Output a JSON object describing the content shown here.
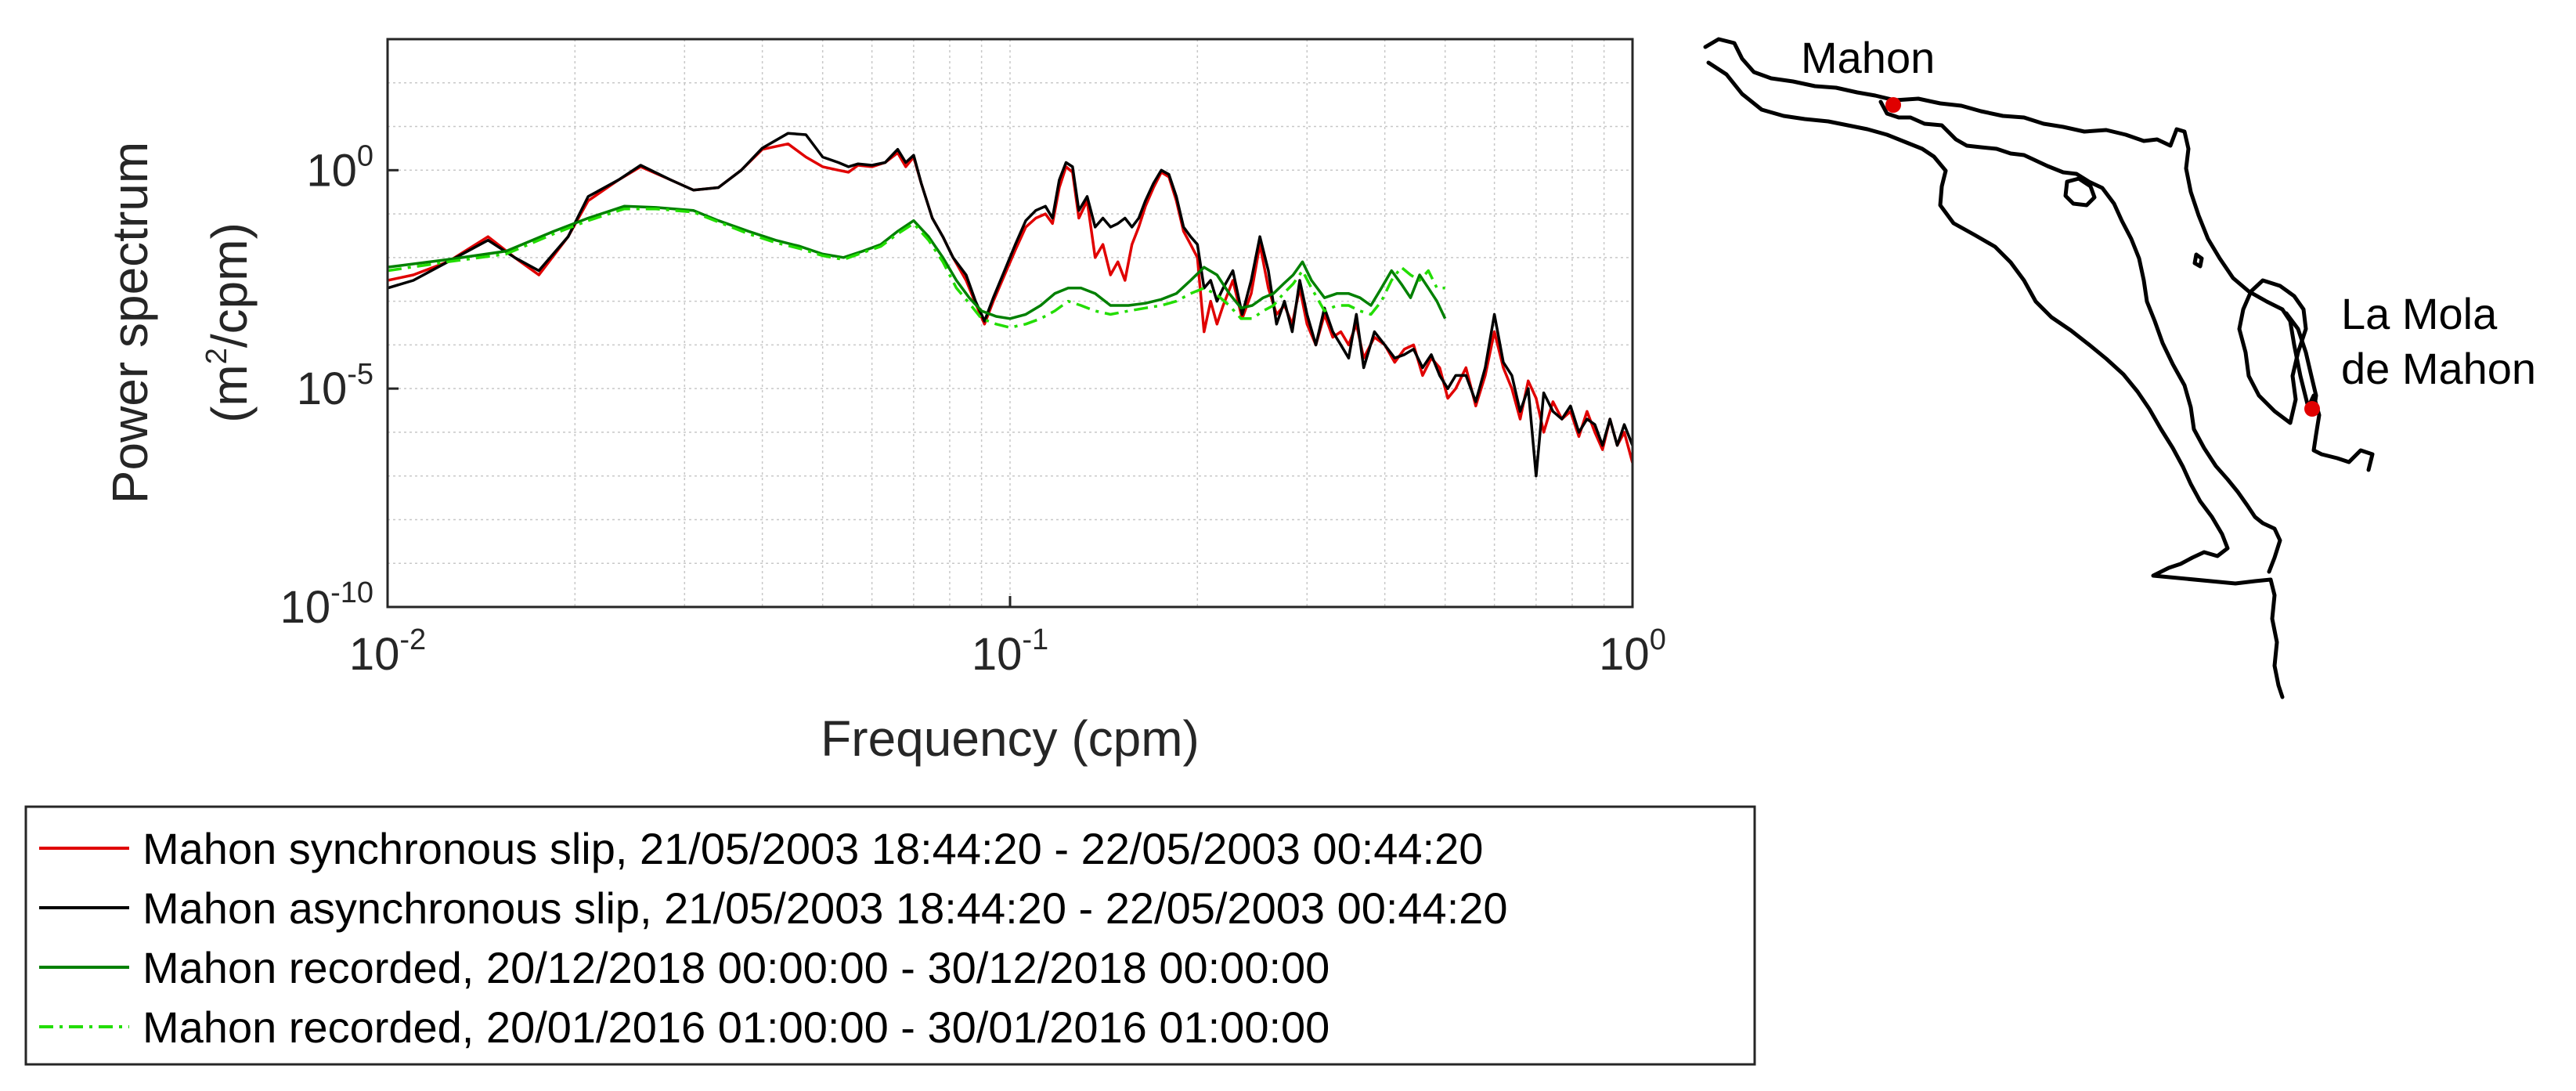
{
  "chart_data": [
    {
      "type": "line",
      "xscale": "log",
      "yscale": "log",
      "xlim": [
        0.01,
        1
      ],
      "ylim": [
        1e-10,
        1000
      ],
      "grid": true,
      "xlabel": "Frequency (cpm)",
      "ylabel_line1": "Power spectrum",
      "ylabel_line2_pre": "(m",
      "ylabel_line2_sup": "2",
      "ylabel_line2_post": "/cpm)",
      "xticks": [
        {
          "value": 0.01,
          "base": "10",
          "exp": "-2"
        },
        {
          "value": 0.1,
          "base": "10",
          "exp": "-1"
        },
        {
          "value": 1,
          "base": "10",
          "exp": "0"
        }
      ],
      "yticks": [
        {
          "value": 1,
          "base": "10",
          "exp": "0"
        },
        {
          "value": 1e-05,
          "base": "10",
          "exp": "-5"
        },
        {
          "value": 1e-10,
          "base": "10",
          "exp": "-10"
        }
      ],
      "legend_position": "below-left",
      "series": [
        {
          "name": "Mahon synchronous slip, 21/05/2003 18:44:20 - 22/05/2003 00:44:20",
          "color": "#e00000",
          "style": "solid",
          "x": [
            0.01,
            0.011,
            0.0125,
            0.0145,
            0.016,
            0.0175,
            0.0195,
            0.021,
            0.0235,
            0.0255,
            0.0285,
            0.031,
            0.034,
            0.037,
            0.04,
            0.044,
            0.047,
            0.05,
            0.053,
            0.055,
            0.057,
            0.06,
            0.063,
            0.066,
            0.068,
            0.07,
            0.072,
            0.075,
            0.078,
            0.081,
            0.085,
            0.088,
            0.091,
            0.094,
            0.098,
            0.102,
            0.106,
            0.11,
            0.114,
            0.117,
            0.12,
            0.123,
            0.126,
            0.129,
            0.133,
            0.137,
            0.141,
            0.145,
            0.149,
            0.153,
            0.157,
            0.161,
            0.165,
            0.17,
            0.175,
            0.18,
            0.185,
            0.19,
            0.195,
            0.2,
            0.205,
            0.21,
            0.215,
            0.22,
            0.228,
            0.236,
            0.244,
            0.252,
            0.26,
            0.268,
            0.276,
            0.284,
            0.292,
            0.3,
            0.31,
            0.32,
            0.33,
            0.34,
            0.35,
            0.36,
            0.37,
            0.385,
            0.4,
            0.415,
            0.43,
            0.445,
            0.46,
            0.475,
            0.49,
            0.505,
            0.52,
            0.54,
            0.56,
            0.58,
            0.6,
            0.62,
            0.64,
            0.66,
            0.68,
            0.7,
            0.72,
            0.745,
            0.77,
            0.795,
            0.82,
            0.845,
            0.87,
            0.895,
            0.92,
            0.945,
            0.97,
            1.0
          ],
          "y": [
            0.003,
            0.004,
            0.008,
            0.03,
            0.01,
            0.004,
            0.03,
            0.2,
            0.6,
            1.2,
            0.6,
            0.35,
            0.4,
            1.0,
            3.0,
            4.0,
            2.0,
            1.2,
            1.0,
            0.9,
            1.3,
            1.2,
            1.5,
            2.5,
            1.2,
            2.0,
            0.5,
            0.08,
            0.03,
            0.01,
            0.003,
            0.0009,
            0.0003,
            0.001,
            0.004,
            0.015,
            0.05,
            0.08,
            0.1,
            0.06,
            0.4,
            1.2,
            0.9,
            0.08,
            0.2,
            0.01,
            0.02,
            0.004,
            0.008,
            0.003,
            0.02,
            0.05,
            0.15,
            0.4,
            0.9,
            0.7,
            0.2,
            0.04,
            0.02,
            0.01,
            0.0002,
            0.001,
            0.0003,
            0.0008,
            0.003,
            0.0004,
            0.0015,
            0.02,
            0.002,
            0.0005,
            0.0008,
            0.0003,
            0.002,
            0.0003,
            0.0001,
            0.0005,
            0.00015,
            0.0002,
            0.0001,
            0.0003,
            5e-05,
            0.00015,
            0.0001,
            4e-05,
            8e-05,
            0.0001,
            2e-05,
            5e-05,
            3e-05,
            6e-06,
            1e-05,
            3e-05,
            4e-06,
            2e-05,
            0.0002,
            3e-05,
            1e-05,
            2e-06,
            1.5e-05,
            6e-06,
            1e-06,
            5e-06,
            2e-06,
            3e-06,
            8e-07,
            3e-06,
            1e-06,
            4e-07,
            2e-06,
            5e-07,
            1e-06,
            2e-07
          ]
        },
        {
          "name": "Mahon asynchronous slip, 21/05/2003 18:44:20 - 22/05/2003 00:44:20",
          "color": "#000000",
          "style": "solid",
          "x": [
            0.01,
            0.011,
            0.0125,
            0.0145,
            0.016,
            0.0175,
            0.0195,
            0.021,
            0.0235,
            0.0255,
            0.0285,
            0.031,
            0.034,
            0.037,
            0.04,
            0.044,
            0.047,
            0.05,
            0.053,
            0.055,
            0.057,
            0.06,
            0.063,
            0.066,
            0.068,
            0.07,
            0.072,
            0.075,
            0.078,
            0.081,
            0.085,
            0.088,
            0.091,
            0.094,
            0.098,
            0.102,
            0.106,
            0.11,
            0.114,
            0.117,
            0.12,
            0.123,
            0.126,
            0.129,
            0.133,
            0.137,
            0.141,
            0.145,
            0.149,
            0.153,
            0.157,
            0.161,
            0.165,
            0.17,
            0.175,
            0.18,
            0.185,
            0.19,
            0.195,
            0.2,
            0.205,
            0.21,
            0.215,
            0.22,
            0.228,
            0.236,
            0.244,
            0.252,
            0.26,
            0.268,
            0.276,
            0.284,
            0.292,
            0.3,
            0.31,
            0.32,
            0.33,
            0.34,
            0.35,
            0.36,
            0.37,
            0.385,
            0.4,
            0.415,
            0.43,
            0.445,
            0.46,
            0.475,
            0.49,
            0.505,
            0.52,
            0.54,
            0.56,
            0.58,
            0.6,
            0.62,
            0.64,
            0.66,
            0.68,
            0.7,
            0.72,
            0.745,
            0.77,
            0.795,
            0.82,
            0.845,
            0.87,
            0.895,
            0.92,
            0.945,
            0.97,
            1.0
          ],
          "y": [
            0.002,
            0.003,
            0.008,
            0.025,
            0.01,
            0.005,
            0.03,
            0.25,
            0.6,
            1.3,
            0.6,
            0.35,
            0.4,
            1.0,
            3.2,
            7.0,
            6.5,
            2.0,
            1.5,
            1.2,
            1.4,
            1.3,
            1.5,
            3.0,
            1.5,
            2.2,
            0.5,
            0.08,
            0.03,
            0.01,
            0.004,
            0.001,
            0.00035,
            0.0012,
            0.005,
            0.02,
            0.07,
            0.12,
            0.15,
            0.08,
            0.6,
            1.5,
            1.2,
            0.12,
            0.25,
            0.05,
            0.08,
            0.05,
            0.06,
            0.08,
            0.05,
            0.08,
            0.2,
            0.5,
            1.0,
            0.8,
            0.25,
            0.05,
            0.03,
            0.02,
            0.002,
            0.003,
            0.001,
            0.002,
            0.005,
            0.0005,
            0.003,
            0.03,
            0.005,
            0.0003,
            0.001,
            0.0002,
            0.003,
            0.0005,
            0.0001,
            0.0007,
            0.0002,
            0.0001,
            5e-05,
            0.0005,
            3e-05,
            0.0002,
            0.0001,
            5e-05,
            6e-05,
            8e-05,
            3e-05,
            6e-05,
            2e-05,
            1e-05,
            2e-05,
            2e-05,
            5e-06,
            3e-05,
            0.0005,
            4e-05,
            2e-05,
            3e-06,
            1e-05,
            1e-07,
            8e-06,
            3e-06,
            2e-06,
            4e-06,
            1e-06,
            2e-06,
            1.5e-06,
            5e-07,
            2e-06,
            5e-07,
            1.5e-06,
            5e-07
          ]
        },
        {
          "name": "Mahon recorded, 20/12/2018 00:00:00 - 30/12/2018 00:00:00",
          "color": "#008000",
          "style": "solid",
          "x": [
            0.01,
            0.0125,
            0.0155,
            0.0185,
            0.021,
            0.024,
            0.027,
            0.031,
            0.034,
            0.038,
            0.042,
            0.046,
            0.05,
            0.054,
            0.058,
            0.062,
            0.066,
            0.07,
            0.074,
            0.078,
            0.082,
            0.086,
            0.09,
            0.095,
            0.1,
            0.106,
            0.112,
            0.118,
            0.124,
            0.13,
            0.137,
            0.145,
            0.155,
            0.165,
            0.175,
            0.185,
            0.195,
            0.205,
            0.215,
            0.225,
            0.235,
            0.245,
            0.255,
            0.265,
            0.275,
            0.285,
            0.295,
            0.305,
            0.32,
            0.335,
            0.35,
            0.365,
            0.38,
            0.395,
            0.41,
            0.425,
            0.44,
            0.455,
            0.47,
            0.485,
            0.5
          ],
          "y": [
            0.006,
            0.009,
            0.014,
            0.04,
            0.08,
            0.15,
            0.14,
            0.12,
            0.07,
            0.04,
            0.025,
            0.018,
            0.012,
            0.01,
            0.014,
            0.02,
            0.04,
            0.07,
            0.03,
            0.01,
            0.003,
            0.0012,
            0.0006,
            0.00045,
            0.0004,
            0.0005,
            0.0008,
            0.0015,
            0.002,
            0.002,
            0.0015,
            0.0008,
            0.0008,
            0.0009,
            0.0011,
            0.0015,
            0.003,
            0.006,
            0.004,
            0.0015,
            0.0007,
            0.0008,
            0.0012,
            0.0015,
            0.0025,
            0.004,
            0.008,
            0.003,
            0.0012,
            0.0015,
            0.0015,
            0.0012,
            0.0008,
            0.002,
            0.005,
            0.0025,
            0.0012,
            0.004,
            0.002,
            0.001,
            0.0004
          ]
        },
        {
          "name": "Mahon recorded, 20/01/2016 01:00:00 - 30/01/2016 01:00:00",
          "color": "#22dd00",
          "style": "dashdot",
          "x": [
            0.01,
            0.0125,
            0.0155,
            0.0185,
            0.021,
            0.024,
            0.027,
            0.031,
            0.034,
            0.038,
            0.042,
            0.046,
            0.05,
            0.054,
            0.058,
            0.062,
            0.066,
            0.07,
            0.074,
            0.078,
            0.082,
            0.086,
            0.09,
            0.095,
            0.1,
            0.106,
            0.112,
            0.118,
            0.124,
            0.13,
            0.137,
            0.145,
            0.155,
            0.165,
            0.175,
            0.185,
            0.195,
            0.205,
            0.215,
            0.225,
            0.235,
            0.245,
            0.255,
            0.265,
            0.275,
            0.285,
            0.295,
            0.305,
            0.32,
            0.335,
            0.35,
            0.365,
            0.38,
            0.395,
            0.41,
            0.425,
            0.44,
            0.455,
            0.47,
            0.485,
            0.5
          ],
          "y": [
            0.005,
            0.008,
            0.012,
            0.035,
            0.07,
            0.13,
            0.13,
            0.11,
            0.065,
            0.035,
            0.022,
            0.016,
            0.011,
            0.009,
            0.013,
            0.018,
            0.035,
            0.06,
            0.025,
            0.008,
            0.002,
            0.0009,
            0.0004,
            0.0003,
            0.00025,
            0.0003,
            0.0004,
            0.0006,
            0.001,
            0.0008,
            0.0006,
            0.0005,
            0.0006,
            0.0007,
            0.0008,
            0.001,
            0.0015,
            0.002,
            0.0014,
            0.0008,
            0.0004,
            0.0004,
            0.0006,
            0.0008,
            0.0015,
            0.0025,
            0.005,
            0.002,
            0.0006,
            0.0008,
            0.0008,
            0.0006,
            0.0005,
            0.001,
            0.003,
            0.006,
            0.004,
            0.003,
            0.005,
            0.002,
            0.002
          ]
        }
      ]
    }
  ],
  "map": {
    "label_mahon": "Mahon",
    "label_mola_line1": "La Mola",
    "label_mola_line2": "de Mahon",
    "marker_color": "#e00000",
    "coast_color": "#000000"
  }
}
